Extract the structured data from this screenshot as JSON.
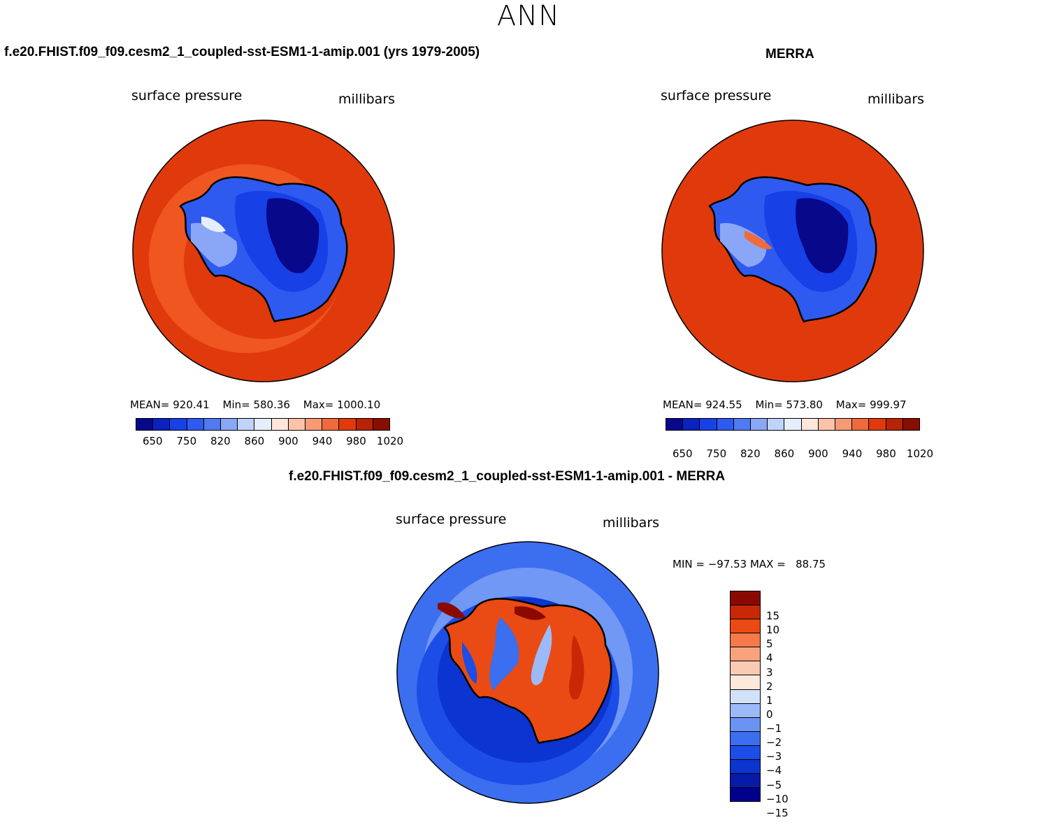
{
  "title": "ANN",
  "panels": [
    {
      "title": "f.e20.FHIST.f09_f09.cesm2_1_coupled-sst-ESM1-1-amip.001 (yrs 1979-2005)",
      "var_label": "surface pressure",
      "units": "millibars",
      "stats": {
        "mean": "MEAN= 920.41",
        "min": "Min= 580.36",
        "max": "Max= 1000.10"
      },
      "colorbar": {
        "colors": [
          "#08088a",
          "#0a23c0",
          "#1740e6",
          "#2f5af0",
          "#5079f2",
          "#8aa6f6",
          "#c0d3fb",
          "#e6eefe",
          "#fde6da",
          "#fbc3aa",
          "#f79a74",
          "#f06a3c",
          "#e03a0c",
          "#b82306",
          "#880f00"
        ],
        "labels": [
          "650",
          "750",
          "820",
          "860",
          "900",
          "940",
          "980",
          "1020"
        ]
      }
    },
    {
      "title": "MERRA",
      "var_label": "surface pressure",
      "units": "millibars",
      "stats": {
        "mean": "MEAN= 924.55",
        "min": "Min= 573.80",
        "max": "Max= 999.97"
      },
      "colorbar": {
        "colors": [
          "#08088a",
          "#0a23c0",
          "#1740e6",
          "#2f5af0",
          "#5079f2",
          "#8aa6f6",
          "#c0d3fb",
          "#e6eefe",
          "#fde6da",
          "#fbc3aa",
          "#f79a74",
          "#f06a3c",
          "#e03a0c",
          "#b82306",
          "#880f00"
        ],
        "labels": [
          "650",
          "750",
          "820",
          "860",
          "900",
          "940",
          "980",
          "1020"
        ]
      }
    },
    {
      "title": "f.e20.FHIST.f09_f09.cesm2_1_coupled-sst-ESM1-1-amip.001 - MERRA",
      "var_label": "surface pressure",
      "units": "millibars",
      "stats": {
        "minmax": "MIN = −97.53 MAX =   88.75"
      },
      "colorbar": {
        "colors": [
          "#00008c",
          "#061ba8",
          "#0c34d0",
          "#1c4de6",
          "#3b6ff0",
          "#6a93f4",
          "#9cb9f8",
          "#d2e2fb",
          "#fde8dc",
          "#fbcab2",
          "#f8a27e",
          "#f47a4c",
          "#ea4a14",
          "#c82806",
          "#8a0a00"
        ],
        "labels": [
          "−15",
          "−10",
          "−5",
          "−4",
          "−3",
          "−2",
          "−1",
          "0",
          "1",
          "2",
          "3",
          "4",
          "5",
          "10",
          "15"
        ]
      }
    }
  ]
}
